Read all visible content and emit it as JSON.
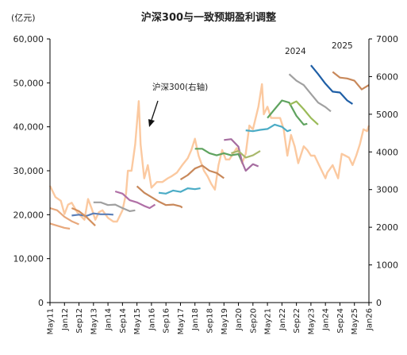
{
  "chart_data": {
    "type": "line",
    "title": "沪深300与一致预期盈利调整",
    "left_unit_label": "(亿元)",
    "y_left": {
      "range": [
        0,
        60000
      ],
      "ticks": [
        "0",
        "10,000",
        "20,000",
        "30,000",
        "40,000",
        "50,000",
        "60,000"
      ]
    },
    "y_right": {
      "range": [
        0,
        7000
      ],
      "ticks": [
        "0",
        "1000",
        "2000",
        "3000",
        "4000",
        "5000",
        "6000",
        "7000"
      ]
    },
    "x_range": [
      "2011-05",
      "2026-01"
    ],
    "x_ticks": [
      "May11",
      "Jan12",
      "Sep12",
      "May13",
      "Jan14",
      "Sep14",
      "May15",
      "Jan16",
      "Sep16",
      "May17",
      "Jan18",
      "Sep18",
      "May19",
      "Jan20",
      "Sep20",
      "May21",
      "Jan22",
      "Sep22",
      "May23",
      "Jan24",
      "Sep24",
      "May25",
      "Jan26"
    ],
    "annotations": {
      "index_label": "沪深300(右轴)",
      "label_2024": "2024",
      "label_2025": "2025"
    },
    "csi300": {
      "name": "沪深300(右轴)",
      "color": "#fbc9a0",
      "points": [
        [
          "2011-05",
          3100
        ],
        [
          "2011-08",
          2800
        ],
        [
          "2011-11",
          2700
        ],
        [
          "2012-01",
          2350
        ],
        [
          "2012-03",
          2600
        ],
        [
          "2012-05",
          2650
        ],
        [
          "2012-08",
          2400
        ],
        [
          "2012-10",
          2300
        ],
        [
          "2012-12",
          2200
        ],
        [
          "2013-02",
          2750
        ],
        [
          "2013-04",
          2500
        ],
        [
          "2013-06",
          2200
        ],
        [
          "2013-08",
          2400
        ],
        [
          "2013-10",
          2450
        ],
        [
          "2014-01",
          2250
        ],
        [
          "2014-04",
          2150
        ],
        [
          "2014-06",
          2150
        ],
        [
          "2014-09",
          2450
        ],
        [
          "2014-11",
          2900
        ],
        [
          "2014-12",
          3500
        ],
        [
          "2015-02",
          3500
        ],
        [
          "2015-04",
          4200
        ],
        [
          "2015-06",
          5350
        ],
        [
          "2015-07",
          4200
        ],
        [
          "2015-09",
          3300
        ],
        [
          "2015-11",
          3650
        ],
        [
          "2016-01",
          3050
        ],
        [
          "2016-04",
          3200
        ],
        [
          "2016-07",
          3200
        ],
        [
          "2016-10",
          3300
        ],
        [
          "2016-12",
          3350
        ],
        [
          "2017-03",
          3450
        ],
        [
          "2017-06",
          3650
        ],
        [
          "2017-09",
          3830
        ],
        [
          "2017-11",
          4050
        ],
        [
          "2018-01",
          4350
        ],
        [
          "2018-03",
          3900
        ],
        [
          "2018-06",
          3500
        ],
        [
          "2018-08",
          3350
        ],
        [
          "2018-10",
          3150
        ],
        [
          "2018-12",
          3000
        ],
        [
          "2019-02",
          3650
        ],
        [
          "2019-04",
          4050
        ],
        [
          "2019-06",
          3800
        ],
        [
          "2019-08",
          3800
        ],
        [
          "2019-12",
          4100
        ],
        [
          "2020-02",
          3900
        ],
        [
          "2020-03",
          3700
        ],
        [
          "2020-05",
          3950
        ],
        [
          "2020-07",
          4700
        ],
        [
          "2020-09",
          4600
        ],
        [
          "2020-12",
          5200
        ],
        [
          "2021-02",
          5800
        ],
        [
          "2021-03",
          5000
        ],
        [
          "2021-05",
          5200
        ],
        [
          "2021-07",
          4900
        ],
        [
          "2021-09",
          4900
        ],
        [
          "2021-12",
          4900
        ],
        [
          "2022-02",
          4600
        ],
        [
          "2022-04",
          3900
        ],
        [
          "2022-06",
          4450
        ],
        [
          "2022-08",
          4150
        ],
        [
          "2022-10",
          3700
        ],
        [
          "2023-01",
          4150
        ],
        [
          "2023-03",
          4050
        ],
        [
          "2023-05",
          3900
        ],
        [
          "2023-07",
          3900
        ],
        [
          "2023-09",
          3700
        ],
        [
          "2023-11",
          3500
        ],
        [
          "2024-01",
          3300
        ],
        [
          "2024-02",
          3450
        ],
        [
          "2024-05",
          3650
        ],
        [
          "2024-08",
          3300
        ],
        [
          "2024-10",
          3950
        ],
        [
          "2024-12",
          3900
        ],
        [
          "2025-02",
          3850
        ],
        [
          "2025-04",
          3650
        ],
        [
          "2025-06",
          3900
        ],
        [
          "2025-08",
          4200
        ],
        [
          "2025-10",
          4600
        ],
        [
          "2025-12",
          4550
        ],
        [
          "2026-01",
          4700
        ]
      ]
    },
    "series": [
      {
        "color": "#e8a87c",
        "points": [
          [
            "2011-05",
            21500
          ],
          [
            "2011-09",
            21000
          ],
          [
            "2012-01",
            19500
          ],
          [
            "2012-05",
            18500
          ],
          [
            "2012-09",
            17800
          ]
        ]
      },
      {
        "color": "#e8a87c",
        "points": [
          [
            "2011-05",
            18000
          ],
          [
            "2011-09",
            17500
          ],
          [
            "2012-01",
            17000
          ],
          [
            "2012-04",
            16800
          ]
        ]
      },
      {
        "color": "#5a7fb8",
        "points": [
          [
            "2012-05",
            19800
          ],
          [
            "2012-09",
            20000
          ],
          [
            "2013-01",
            19700
          ],
          [
            "2013-05",
            20300
          ],
          [
            "2013-09",
            20100
          ],
          [
            "2014-01",
            20100
          ],
          [
            "2014-04",
            20000
          ]
        ]
      },
      {
        "color": "#d4905e",
        "points": [
          [
            "2012-05",
            21500
          ],
          [
            "2012-09",
            20800
          ],
          [
            "2013-01",
            19500
          ],
          [
            "2013-06",
            17500
          ]
        ]
      },
      {
        "color": "#a0a0a0",
        "points": [
          [
            "2013-05",
            22800
          ],
          [
            "2013-09",
            22800
          ],
          [
            "2014-01",
            22200
          ],
          [
            "2014-05",
            22300
          ],
          [
            "2014-09",
            21500
          ],
          [
            "2015-01",
            20800
          ],
          [
            "2015-04",
            21000
          ]
        ]
      },
      {
        "color": "#b06fa6",
        "points": [
          [
            "2014-05",
            25300
          ],
          [
            "2014-09",
            24800
          ],
          [
            "2015-01",
            23300
          ],
          [
            "2015-05",
            22800
          ],
          [
            "2015-09",
            22000
          ],
          [
            "2015-12",
            21500
          ],
          [
            "2016-03",
            22300
          ]
        ]
      },
      {
        "color": "#c8885a",
        "points": [
          [
            "2015-05",
            26500
          ],
          [
            "2015-09",
            25000
          ],
          [
            "2016-01",
            24000
          ],
          [
            "2016-05",
            23000
          ],
          [
            "2016-09",
            22200
          ],
          [
            "2017-01",
            22300
          ],
          [
            "2017-05",
            21900
          ],
          [
            "2017-06",
            21600
          ]
        ]
      },
      {
        "color": "#4bacc6",
        "points": [
          [
            "2016-05",
            25000
          ],
          [
            "2016-09",
            24800
          ],
          [
            "2017-01",
            25500
          ],
          [
            "2017-05",
            25200
          ],
          [
            "2017-09",
            26000
          ],
          [
            "2018-01",
            25800
          ],
          [
            "2018-04",
            26000
          ]
        ]
      },
      {
        "color": "#c8885a",
        "points": [
          [
            "2017-05",
            28000
          ],
          [
            "2017-09",
            29000
          ],
          [
            "2018-01",
            30500
          ],
          [
            "2018-05",
            31200
          ],
          [
            "2018-09",
            30000
          ],
          [
            "2019-01",
            29500
          ],
          [
            "2019-05",
            28300
          ]
        ]
      },
      {
        "color": "#5fa35f",
        "points": [
          [
            "2018-01",
            35000
          ],
          [
            "2018-05",
            35000
          ],
          [
            "2018-09",
            34000
          ],
          [
            "2019-01",
            33500
          ],
          [
            "2019-05",
            34000
          ],
          [
            "2019-09",
            33500
          ],
          [
            "2020-01",
            33800
          ],
          [
            "2020-03",
            32000
          ]
        ]
      },
      {
        "color": "#a66da0",
        "points": [
          [
            "2019-05",
            37000
          ],
          [
            "2019-09",
            37200
          ],
          [
            "2020-01",
            35500
          ],
          [
            "2020-03",
            32000
          ],
          [
            "2020-05",
            30000
          ],
          [
            "2020-09",
            31500
          ],
          [
            "2020-12",
            31000
          ]
        ]
      },
      {
        "color": "#a9b86b",
        "points": [
          [
            "2019-09",
            34000
          ],
          [
            "2020-01",
            34500
          ],
          [
            "2020-05",
            33000
          ],
          [
            "2020-09",
            33500
          ],
          [
            "2021-01",
            34500
          ]
        ]
      },
      {
        "color": "#4bacc6",
        "points": [
          [
            "2020-05",
            39200
          ],
          [
            "2020-09",
            39000
          ],
          [
            "2021-01",
            39300
          ],
          [
            "2021-05",
            39500
          ],
          [
            "2021-09",
            40500
          ],
          [
            "2022-01",
            40000
          ],
          [
            "2022-04",
            39000
          ],
          [
            "2022-06",
            39300
          ]
        ]
      },
      {
        "color": "#5fa35f",
        "points": [
          [
            "2021-05",
            42000
          ],
          [
            "2021-09",
            44000
          ],
          [
            "2022-01",
            46000
          ],
          [
            "2022-05",
            45500
          ],
          [
            "2022-09",
            42500
          ],
          [
            "2023-01",
            40500
          ],
          [
            "2023-03",
            40700
          ]
        ]
      },
      {
        "color": "#9bbb59",
        "points": [
          [
            "2022-05",
            45000
          ],
          [
            "2022-09",
            45800
          ],
          [
            "2023-01",
            44000
          ],
          [
            "2023-05",
            42000
          ],
          [
            "2023-09",
            40500
          ]
        ]
      },
      {
        "color": "#a0a0a0",
        "points": [
          [
            "2022-05",
            52000
          ],
          [
            "2022-09",
            50500
          ],
          [
            "2023-01",
            49500
          ],
          [
            "2023-05",
            47500
          ],
          [
            "2023-09",
            45500
          ],
          [
            "2024-01",
            44500
          ],
          [
            "2024-04",
            43500
          ]
        ]
      },
      {
        "color": "#1f5fa6",
        "points": [
          [
            "2023-05",
            54000
          ],
          [
            "2023-09",
            52000
          ],
          [
            "2024-01",
            49800
          ],
          [
            "2024-05",
            48000
          ],
          [
            "2024-09",
            47800
          ],
          [
            "2025-01",
            46000
          ],
          [
            "2025-04",
            45200
          ]
        ]
      },
      {
        "color": "#c8885a",
        "points": [
          [
            "2024-05",
            52500
          ],
          [
            "2024-09",
            51200
          ],
          [
            "2025-01",
            51000
          ],
          [
            "2025-05",
            50500
          ],
          [
            "2025-09",
            48500
          ],
          [
            "2026-01",
            49500
          ]
        ]
      }
    ]
  }
}
